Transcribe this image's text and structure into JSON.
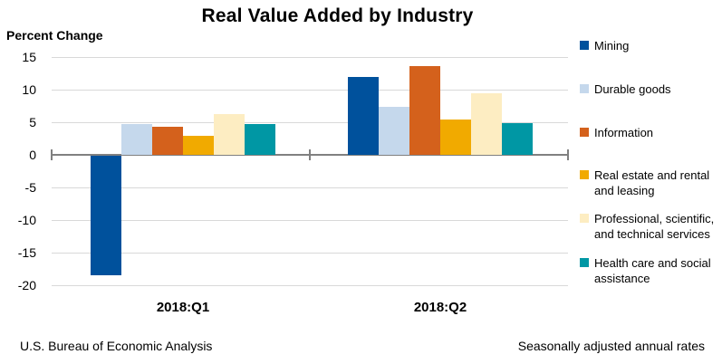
{
  "title": "Real Value Added by Industry",
  "axis_label": "Percent Change",
  "footer": {
    "left": "U.S. Bureau of Economic Analysis",
    "right": "Seasonally adjusted annual rates"
  },
  "chart_data": {
    "type": "bar",
    "title": "Real Value Added by Industry",
    "ylabel": "Percent Change",
    "categories": [
      "2018:Q1",
      "2018:Q2"
    ],
    "series": [
      {
        "name": "Mining",
        "color": "#00519C",
        "values": [
          -18.4,
          12.0
        ]
      },
      {
        "name": "Durable goods",
        "color": "#C5D8EC",
        "values": [
          4.7,
          7.3
        ]
      },
      {
        "name": "Information",
        "color": "#D4611C",
        "values": [
          4.3,
          13.6
        ]
      },
      {
        "name": "Real estate and rental and leasing",
        "color": "#F1AA00",
        "values": [
          2.9,
          5.4
        ]
      },
      {
        "name": "Professional, scientific, and technical services",
        "color": "#FDEDC2",
        "values": [
          6.3,
          9.5
        ]
      },
      {
        "name": "Health care and social assistance",
        "color": "#0097A4",
        "values": [
          4.7,
          4.8
        ]
      }
    ],
    "y_ticks": [
      15,
      10,
      5,
      0,
      -5,
      -10,
      -15,
      -20
    ],
    "ylim": [
      -20,
      15
    ],
    "grid": true,
    "legend_position": "right",
    "axis_color": "#808080",
    "gridline_color": "#D9D9D9"
  }
}
